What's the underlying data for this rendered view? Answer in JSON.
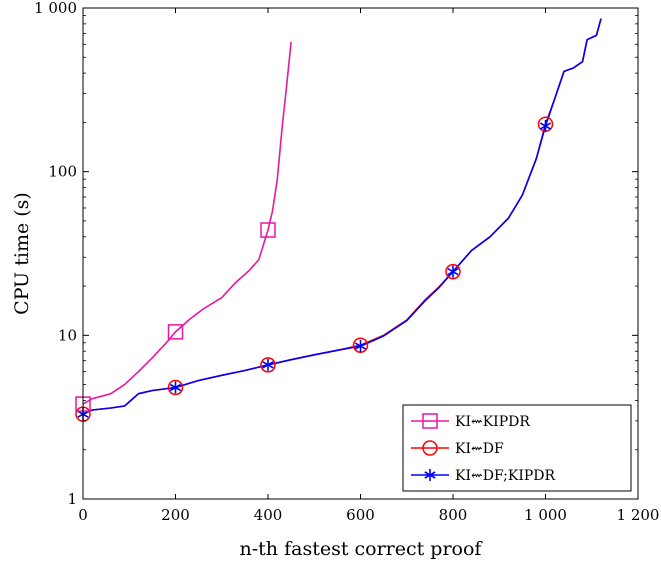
{
  "chart_data": {
    "type": "line",
    "xlabel": "n-th fastest correct proof",
    "ylabel": "CPU time (s)",
    "xlim": [
      0,
      1200
    ],
    "ylim": [
      1,
      1000
    ],
    "yscale": "log",
    "x_ticks": [
      0,
      200,
      400,
      600,
      800,
      1000,
      1200
    ],
    "x_tick_labels": [
      "0",
      "200",
      "400",
      "600",
      "800",
      "1 000",
      "1 200"
    ],
    "y_ticks": [
      1,
      10,
      100,
      1000
    ],
    "y_tick_labels": [
      "1",
      "10",
      "100",
      "1 000"
    ],
    "legend_position": "bottom-right",
    "series": [
      {
        "name": "KI⇜DF",
        "color": "#ff0000",
        "marker": "circle",
        "marker_x": [
          0,
          200,
          400,
          600,
          800,
          1000
        ],
        "points": [
          [
            0,
            3.3
          ],
          [
            20,
            3.5
          ],
          [
            60,
            3.6
          ],
          [
            90,
            3.7
          ],
          [
            120,
            4.4
          ],
          [
            150,
            4.6
          ],
          [
            200,
            4.8
          ],
          [
            250,
            5.3
          ],
          [
            300,
            5.7
          ],
          [
            350,
            6.1
          ],
          [
            400,
            6.6
          ],
          [
            450,
            7.1
          ],
          [
            500,
            7.6
          ],
          [
            550,
            8.1
          ],
          [
            600,
            8.7
          ],
          [
            650,
            10.0
          ],
          [
            700,
            12.4
          ],
          [
            740,
            16.5
          ],
          [
            770,
            19.8
          ],
          [
            800,
            24.5
          ],
          [
            840,
            33
          ],
          [
            880,
            40
          ],
          [
            920,
            52
          ],
          [
            950,
            72
          ],
          [
            980,
            120
          ],
          [
            1000,
            195
          ],
          [
            1020,
            280
          ],
          [
            1040,
            410
          ],
          [
            1060,
            430
          ],
          [
            1080,
            470
          ],
          [
            1090,
            640
          ],
          [
            1110,
            680
          ],
          [
            1120,
            860
          ]
        ]
      },
      {
        "name": "KI⇜DF;KIPDR",
        "color": "#0000ff",
        "marker": "asterisk",
        "marker_x": [
          0,
          200,
          400,
          600,
          800,
          1000
        ],
        "points": [
          [
            0,
            3.3
          ],
          [
            20,
            3.5
          ],
          [
            60,
            3.6
          ],
          [
            90,
            3.7
          ],
          [
            120,
            4.4
          ],
          [
            150,
            4.6
          ],
          [
            200,
            4.8
          ],
          [
            250,
            5.3
          ],
          [
            300,
            5.7
          ],
          [
            350,
            6.1
          ],
          [
            400,
            6.6
          ],
          [
            450,
            7.1
          ],
          [
            500,
            7.6
          ],
          [
            550,
            8.1
          ],
          [
            600,
            8.6
          ],
          [
            650,
            9.9
          ],
          [
            700,
            12.3
          ],
          [
            740,
            16.3
          ],
          [
            770,
            19.6
          ],
          [
            800,
            24.5
          ],
          [
            840,
            33
          ],
          [
            880,
            40
          ],
          [
            920,
            52
          ],
          [
            950,
            72
          ],
          [
            980,
            120
          ],
          [
            1000,
            190
          ],
          [
            1020,
            280
          ],
          [
            1040,
            410
          ],
          [
            1060,
            430
          ],
          [
            1080,
            470
          ],
          [
            1090,
            640
          ],
          [
            1110,
            680
          ],
          [
            1120,
            860
          ]
        ]
      },
      {
        "name": "KI⇜KIPDR",
        "color": "#e6199f",
        "marker": "square",
        "marker_x": [
          0,
          200,
          400
        ],
        "points": [
          [
            0,
            3.8
          ],
          [
            20,
            4.1
          ],
          [
            60,
            4.4
          ],
          [
            90,
            5.0
          ],
          [
            120,
            6.0
          ],
          [
            150,
            7.3
          ],
          [
            180,
            9.0
          ],
          [
            200,
            10.5
          ],
          [
            230,
            12.5
          ],
          [
            260,
            14.5
          ],
          [
            300,
            17
          ],
          [
            330,
            21
          ],
          [
            360,
            25
          ],
          [
            380,
            29
          ],
          [
            400,
            44
          ],
          [
            410,
            58
          ],
          [
            420,
            90
          ],
          [
            430,
            180
          ],
          [
            440,
            330
          ],
          [
            450,
            620
          ]
        ]
      }
    ]
  }
}
